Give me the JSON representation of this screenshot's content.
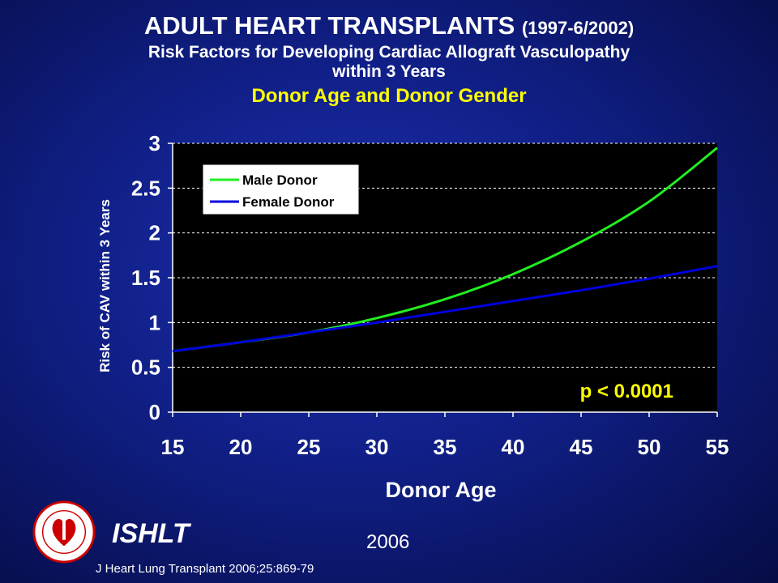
{
  "title": {
    "main": "ADULT HEART TRANSPLANTS",
    "period": "(1997-6/2002)",
    "subtitle_line1": "Risk Factors for Developing Cardiac Allograft Vasculopathy",
    "subtitle_line2": "within 3 Years",
    "heading": "Donor Age and Donor Gender"
  },
  "chart_data": {
    "type": "line",
    "xlabel": "Donor Age",
    "ylabel": "Risk of CAV within 3 Years",
    "xlim": [
      15,
      55
    ],
    "ylim": [
      0,
      3
    ],
    "x_ticks": [
      "15",
      "20",
      "25",
      "30",
      "35",
      "40",
      "45",
      "50",
      "55"
    ],
    "y_ticks": [
      "0",
      "0.5",
      "1",
      "1.5",
      "2",
      "2.5",
      "3"
    ],
    "grid": "horizontal dashed",
    "legend_position": "top-left",
    "annotation": "p < 0.0001",
    "series": [
      {
        "name": "Male Donor",
        "color": "#22ee22",
        "x": [
          15,
          20,
          25,
          30,
          35,
          40,
          45,
          50,
          55
        ],
        "y": [
          0.68,
          0.78,
          0.89,
          1.05,
          1.26,
          1.54,
          1.9,
          2.35,
          2.95
        ]
      },
      {
        "name": "Female Donor",
        "color": "#0000dd",
        "x": [
          15,
          20,
          25,
          30,
          35,
          40,
          45,
          50,
          55
        ],
        "y": [
          0.68,
          0.78,
          0.89,
          1.0,
          1.12,
          1.24,
          1.36,
          1.49,
          1.63
        ]
      }
    ]
  },
  "footer": {
    "org": "ISHLT",
    "year": "2006",
    "citation": "J Heart Lung Transplant 2006;25:869-79"
  }
}
